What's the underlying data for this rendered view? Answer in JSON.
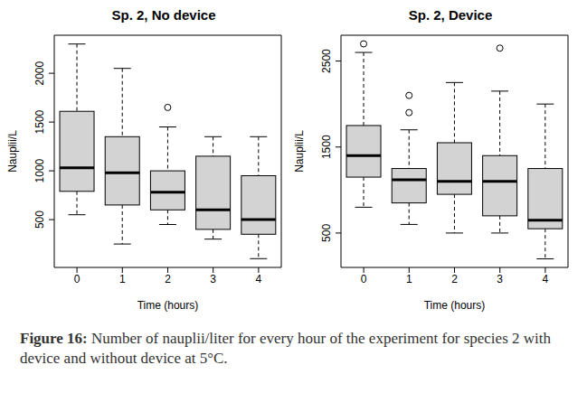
{
  "chart_data": [
    {
      "type": "box",
      "title": "Sp. 2, No device",
      "x_label": "Time (hours)",
      "y_label": "Nauplii/L",
      "categories": [
        "0",
        "1",
        "2",
        "3",
        "4"
      ],
      "boxes": [
        {
          "whisker_low": 550,
          "q1": 790,
          "median": 1030,
          "q3": 1610,
          "whisker_high": 2300,
          "outliers": []
        },
        {
          "whisker_low": 250,
          "q1": 650,
          "median": 980,
          "q3": 1350,
          "whisker_high": 2050,
          "outliers": []
        },
        {
          "whisker_low": 450,
          "q1": 600,
          "median": 780,
          "q3": 1000,
          "whisker_high": 1450,
          "outliers": [
            1650
          ]
        },
        {
          "whisker_low": 300,
          "q1": 400,
          "median": 600,
          "q3": 1150,
          "whisker_high": 1350,
          "outliers": []
        },
        {
          "whisker_low": 100,
          "q1": 350,
          "median": 500,
          "q3": 950,
          "whisker_high": 1350,
          "outliers": []
        }
      ],
      "ylim": [
        10,
        2390
      ],
      "yticks": [
        500,
        1000,
        1500,
        2000
      ],
      "color": "#d3d3d3"
    },
    {
      "type": "box",
      "title": "Sp. 2, Device",
      "x_label": "Time (hours)",
      "y_label": "Nauplii/L",
      "categories": [
        "0",
        "1",
        "2",
        "3",
        "4"
      ],
      "boxes": [
        {
          "whisker_low": 800,
          "q1": 1150,
          "median": 1400,
          "q3": 1750,
          "whisker_high": 2600,
          "outliers": [
            2700
          ]
        },
        {
          "whisker_low": 600,
          "q1": 850,
          "median": 1120,
          "q3": 1250,
          "whisker_high": 1700,
          "outliers": [
            1900,
            2100
          ]
        },
        {
          "whisker_low": 500,
          "q1": 950,
          "median": 1100,
          "q3": 1550,
          "whisker_high": 2250,
          "outliers": []
        },
        {
          "whisker_low": 500,
          "q1": 700,
          "median": 1100,
          "q3": 1400,
          "whisker_high": 2150,
          "outliers": [
            2650
          ]
        },
        {
          "whisker_low": 200,
          "q1": 550,
          "median": 650,
          "q3": 1250,
          "whisker_high": 2000,
          "outliers": []
        }
      ],
      "ylim": [
        100,
        2800
      ],
      "yticks": [
        500,
        1500,
        2500
      ],
      "color": "#d3d3d3"
    }
  ],
  "caption": {
    "label": "Figure 16:",
    "text": "Number of nauplii/liter for every hour of the experiment for species 2 with device and without device at 5°C."
  }
}
